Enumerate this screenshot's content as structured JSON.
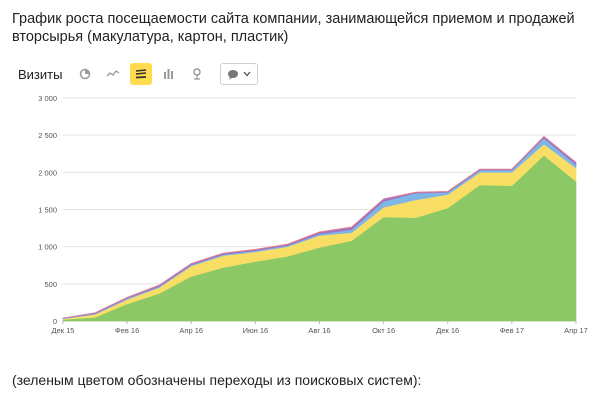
{
  "page": {
    "title": "График роста посещаемости сайта компании, занимающейся приемом и продажей вторсырья (макулатура, картон, пластик)",
    "footnote": "(зеленым цветом обозначены переходы из поисковых систем):"
  },
  "toolbar": {
    "label": "Визиты",
    "buttons": [
      {
        "name": "pie-chart-icon",
        "active": false
      },
      {
        "name": "line-chart-icon",
        "active": false
      },
      {
        "name": "stacked-area-icon",
        "active": true
      },
      {
        "name": "bar-chart-icon",
        "active": false
      },
      {
        "name": "map-pin-icon",
        "active": false
      }
    ],
    "dropdown_icon": "comment-icon"
  },
  "colors": {
    "search": "#8cc865",
    "series2": "#f9de66",
    "series3": "#7cb7e6",
    "series4": "#9e74c9",
    "series5": "#e47b8d"
  },
  "chart_data": {
    "type": "area",
    "stacked": true,
    "x": [
      "2015-12",
      "2016-01",
      "2016-02",
      "2016-03",
      "2016-04",
      "2016-05",
      "2016-06",
      "2016-07",
      "2016-08",
      "2016-09",
      "2016-10",
      "2016-11",
      "2016-12",
      "2017-01",
      "2017-02",
      "2017-03",
      "2017-04"
    ],
    "x_tick_labels": [
      "Дек 15",
      "Фев 16",
      "Апр 16",
      "Июн 16",
      "Авг 16",
      "Окт 16",
      "Дек 16",
      "Фев 17",
      "Апр 17"
    ],
    "y_tick_labels": [
      "0",
      "500",
      "1 000",
      "1 500",
      "2 000",
      "2 500",
      "3 000"
    ],
    "ylim": [
      0,
      3000
    ],
    "grid": true,
    "series": [
      {
        "color_key": "search",
        "values": [
          20,
          50,
          230,
          370,
          600,
          720,
          800,
          870,
          990,
          1080,
          1400,
          1390,
          1520,
          1830,
          1820,
          2230,
          1880
        ]
      },
      {
        "color_key": "series2",
        "values": [
          10,
          40,
          60,
          80,
          140,
          160,
          130,
          130,
          160,
          110,
          130,
          240,
          180,
          170,
          180,
          150,
          180
        ]
      },
      {
        "color_key": "series3",
        "values": [
          5,
          10,
          15,
          15,
          15,
          15,
          15,
          15,
          20,
          40,
          80,
          90,
          30,
          30,
          30,
          80,
          40
        ]
      },
      {
        "color_key": "series4",
        "values": [
          5,
          10,
          10,
          15,
          15,
          15,
          15,
          15,
          25,
          30,
          30,
          10,
          10,
          10,
          10,
          20,
          30
        ]
      },
      {
        "color_key": "series5",
        "values": [
          0,
          0,
          5,
          5,
          5,
          5,
          5,
          5,
          5,
          5,
          5,
          5,
          5,
          5,
          5,
          5,
          5
        ]
      }
    ]
  }
}
